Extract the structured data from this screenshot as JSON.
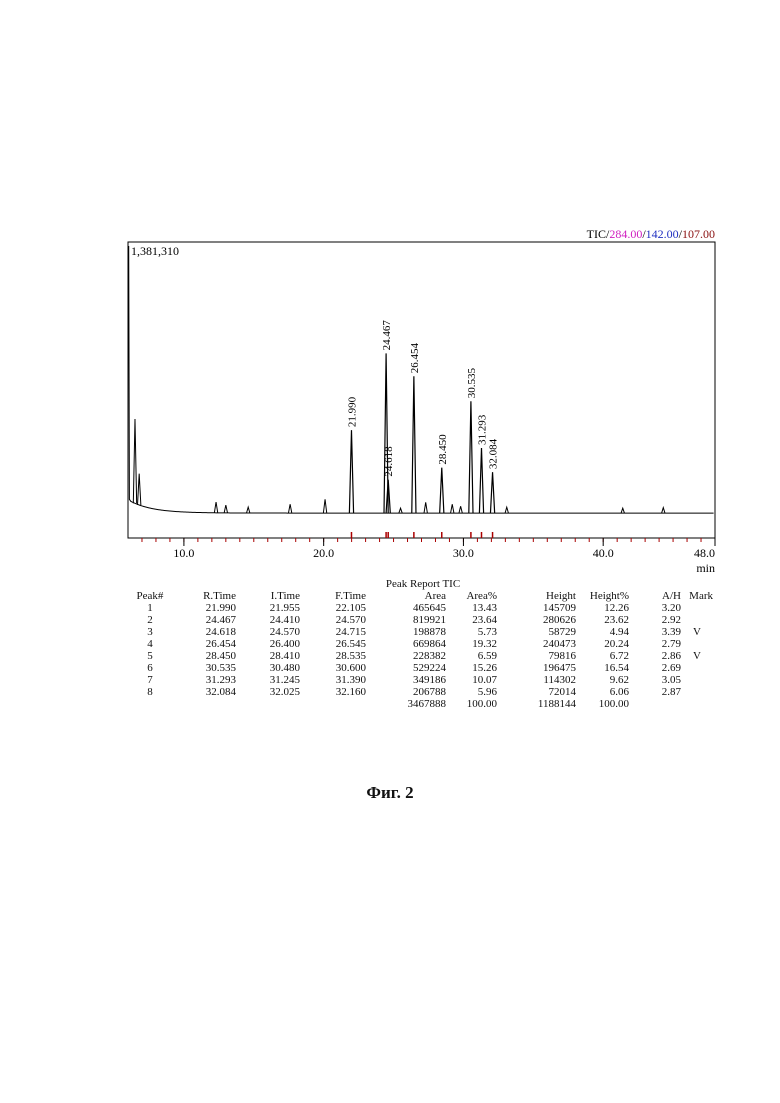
{
  "chart": {
    "max_intensity_label": "1,381,310",
    "tic_label": "TIC",
    "sep": "/",
    "ions": [
      {
        "label": "284.00",
        "color": "#d020c0"
      },
      {
        "label": "142.00",
        "color": "#2030c0"
      },
      {
        "label": "107.00",
        "color": "#8a1010"
      }
    ],
    "x_unit": "min"
  },
  "chart_data": {
    "type": "line",
    "title": "TIC/284.00/142.00/107.00",
    "xlabel": "min",
    "ylabel": "",
    "xlim": [
      6.0,
      48.0
    ],
    "ylim": [
      0,
      1381310
    ],
    "x_ticks": [
      10.0,
      20.0,
      30.0,
      40.0,
      48.0
    ],
    "x_tick_labels": [
      "10.0",
      "20.0",
      "30.0",
      "40.0",
      "48.0"
    ],
    "baseline": 20000,
    "solvent_peak": {
      "x": 6.05,
      "y": 1381310
    },
    "small_peaks": [
      {
        "x": 6.5,
        "y": 430000
      },
      {
        "x": 6.8,
        "y": 160000
      },
      {
        "x": 12.3,
        "y": 55000
      },
      {
        "x": 13.0,
        "y": 40000
      },
      {
        "x": 14.6,
        "y": 30000
      },
      {
        "x": 17.6,
        "y": 45000
      },
      {
        "x": 20.1,
        "y": 70000
      },
      {
        "x": 25.5,
        "y": 25000
      },
      {
        "x": 27.3,
        "y": 55000
      },
      {
        "x": 29.2,
        "y": 45000
      },
      {
        "x": 29.8,
        "y": 35000
      },
      {
        "x": 33.1,
        "y": 30000
      },
      {
        "x": 41.4,
        "y": 25000
      },
      {
        "x": 44.3,
        "y": 28000
      }
    ],
    "peaks": [
      {
        "x": 21.99,
        "y": 145709,
        "label": "21.990"
      },
      {
        "x": 24.467,
        "y": 280626,
        "label": "24.467"
      },
      {
        "x": 24.618,
        "y": 58729,
        "label": "24.618"
      },
      {
        "x": 26.454,
        "y": 240473,
        "label": "26.454"
      },
      {
        "x": 28.45,
        "y": 79816,
        "label": "28.450"
      },
      {
        "x": 30.535,
        "y": 196475,
        "label": "30.535"
      },
      {
        "x": 31.293,
        "y": 114302,
        "label": "31.293"
      },
      {
        "x": 32.084,
        "y": 72014,
        "label": "32.084"
      }
    ],
    "grid": false,
    "legend": "none"
  },
  "report": {
    "title": "Peak Report TIC",
    "headers": [
      "Peak#",
      "R.Time",
      "I.Time",
      "F.Time",
      "Area",
      "Area%",
      "Height",
      "Height%",
      "A/H",
      "Mark"
    ],
    "rows": [
      [
        "1",
        "21.990",
        "21.955",
        "22.105",
        "465645",
        "13.43",
        "145709",
        "12.26",
        "3.20",
        ""
      ],
      [
        "2",
        "24.467",
        "24.410",
        "24.570",
        "819921",
        "23.64",
        "280626",
        "23.62",
        "2.92",
        ""
      ],
      [
        "3",
        "24.618",
        "24.570",
        "24.715",
        "198878",
        "5.73",
        "58729",
        "4.94",
        "3.39",
        "V"
      ],
      [
        "4",
        "26.454",
        "26.400",
        "26.545",
        "669864",
        "19.32",
        "240473",
        "20.24",
        "2.79",
        ""
      ],
      [
        "5",
        "28.450",
        "28.410",
        "28.535",
        "228382",
        "6.59",
        "79816",
        "6.72",
        "2.86",
        "V"
      ],
      [
        "6",
        "30.535",
        "30.480",
        "30.600",
        "529224",
        "15.26",
        "196475",
        "16.54",
        "2.69",
        ""
      ],
      [
        "7",
        "31.293",
        "31.245",
        "31.390",
        "349186",
        "10.07",
        "114302",
        "9.62",
        "3.05",
        ""
      ],
      [
        "8",
        "32.084",
        "32.025",
        "32.160",
        "206788",
        "5.96",
        "72014",
        "6.06",
        "2.87",
        ""
      ]
    ],
    "totals": [
      "",
      "",
      "",
      "",
      "3467888",
      "100.00",
      "1188144",
      "100.00",
      "",
      ""
    ]
  },
  "caption": "Фиг. 2"
}
